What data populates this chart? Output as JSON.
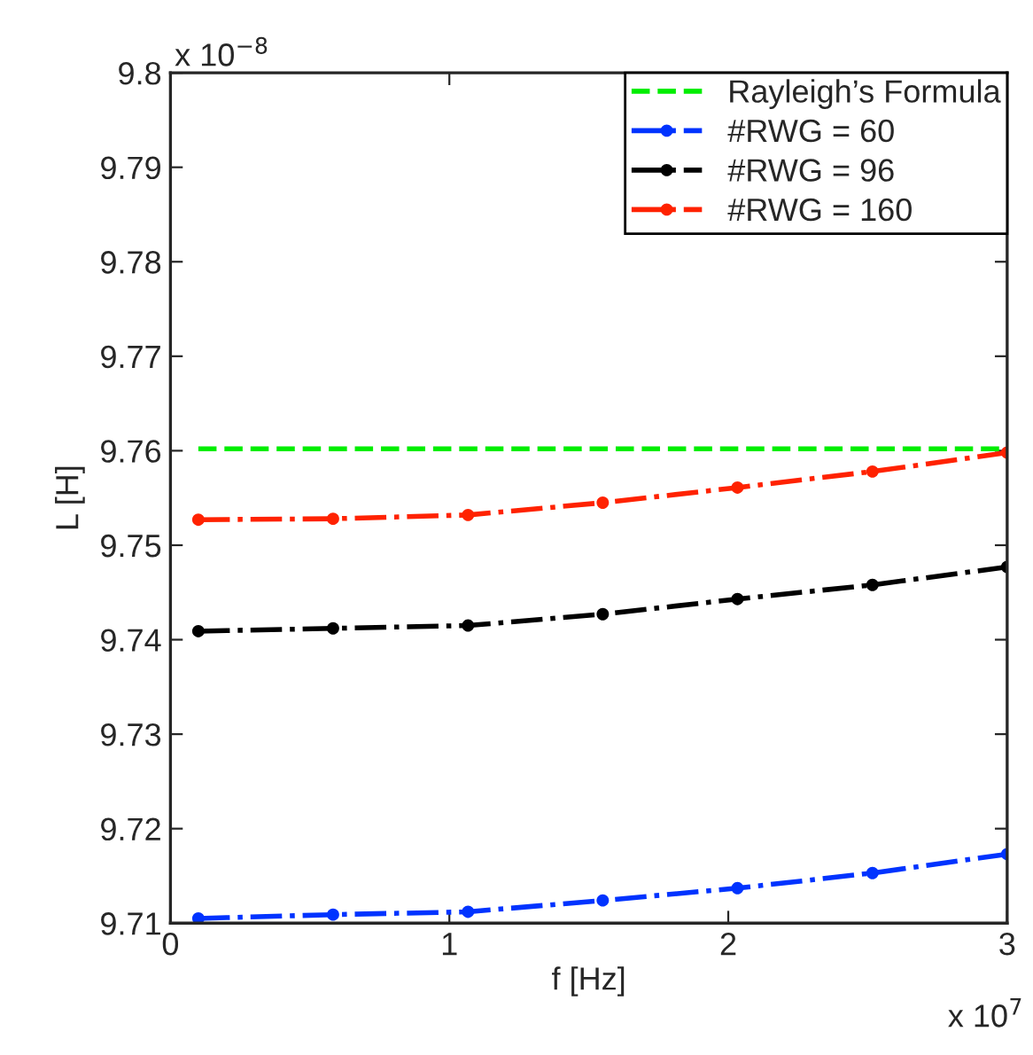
{
  "chart_data": {
    "type": "line",
    "xlabel": "f [Hz]",
    "ylabel": "L [H]",
    "x": [
      0.1,
      0.583,
      1.067,
      1.55,
      2.033,
      2.517,
      3.0
    ],
    "xlim": [
      0,
      3
    ],
    "xticks": [
      0,
      1,
      2,
      3
    ],
    "ylim": [
      9.71,
      9.8
    ],
    "yticks": [
      9.71,
      9.72,
      9.73,
      9.74,
      9.75,
      9.76,
      9.77,
      9.78,
      9.79,
      9.8
    ],
    "grid": false,
    "legend": "top right",
    "annotations": [
      "x 10$^{−8}$",
      "x 10$^{7}$"
    ],
    "series": [
      {
        "name": "Rayleigh’s Formula",
        "color": "#00ee00",
        "line_style": "dashed",
        "marker": "none",
        "values": [
          9.7602,
          9.7602,
          9.7602,
          9.7602,
          9.7602,
          9.7602,
          9.7602
        ]
      },
      {
        "name": "#RWG = 60",
        "color": "#0033ff",
        "line_style": "dashdot",
        "marker": "circle",
        "values": [
          9.7105,
          9.7109,
          9.7112,
          9.7124,
          9.7137,
          9.7153,
          9.7173
        ]
      },
      {
        "name": "#RWG = 96",
        "color": "#000000",
        "line_style": "dashdot",
        "marker": "circle",
        "values": [
          9.7409,
          9.7412,
          9.7415,
          9.7427,
          9.7443,
          9.7458,
          9.7477
        ]
      },
      {
        "name": "#RWG = 160",
        "color": "#ff2200",
        "line_style": "dashdot",
        "marker": "circle",
        "values": [
          9.7527,
          9.7528,
          9.7532,
          9.7545,
          9.7561,
          9.7578,
          9.7598
        ]
      }
    ]
  }
}
